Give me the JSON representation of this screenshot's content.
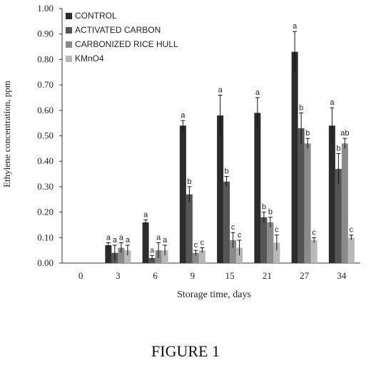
{
  "chart_data": {
    "type": "bar",
    "xlabel": "Storage time, days",
    "ylabel": "Ethylene concentration, ppm",
    "ylim": [
      0,
      1.0
    ],
    "yticks": [
      "0.00",
      "0.10",
      "0.20",
      "0.30",
      "0.40",
      "0.50",
      "0.60",
      "0.70",
      "0.80",
      "0.90",
      "1.00"
    ],
    "categories": [
      "0",
      "3",
      "6",
      "9",
      "15",
      "21",
      "27",
      "34"
    ],
    "legend_position": "top-left",
    "grid": false,
    "error_bars": true,
    "series": [
      {
        "name": "CONTROL",
        "color": "#2b2b2b",
        "values": [
          0,
          0.07,
          0.16,
          0.54,
          0.58,
          0.59,
          0.83,
          0.54
        ],
        "errors": [
          0,
          0.01,
          0.01,
          0.02,
          0.08,
          0.06,
          0.08,
          0.07
        ],
        "labels": [
          "",
          "a",
          "a",
          "a",
          "a",
          "a",
          "a",
          "a"
        ]
      },
      {
        "name": "ACTIVATED CARBON",
        "color": "#555555",
        "values": [
          0,
          0.04,
          0.02,
          0.27,
          0.32,
          0.18,
          0.53,
          0.37
        ],
        "errors": [
          0,
          0.03,
          0.01,
          0.03,
          0.02,
          0.02,
          0.06,
          0.06
        ],
        "labels": [
          "",
          "a",
          "a",
          "b",
          "b",
          "b",
          "b",
          "b"
        ]
      },
      {
        "name": "CARBONIZED RICE HULL",
        "color": "#8a8a8a",
        "values": [
          0,
          0.06,
          0.05,
          0.04,
          0.09,
          0.16,
          0.47,
          0.47
        ],
        "errors": [
          0,
          0.02,
          0.03,
          0.01,
          0.03,
          0.02,
          0.02,
          0.02
        ],
        "labels": [
          "",
          "a",
          "a",
          "c",
          "c",
          "b",
          "b",
          "ab"
        ]
      },
      {
        "name": "KMnO4",
        "color": "#b8b8b8",
        "values": [
          0,
          0.05,
          0.05,
          0.05,
          0.06,
          0.08,
          0.09,
          0.1
        ],
        "errors": [
          0,
          0.02,
          0.02,
          0.01,
          0.03,
          0.03,
          0.01,
          0.01
        ],
        "labels": [
          "",
          "a",
          "a",
          "c",
          "c",
          "c",
          "c",
          "c"
        ]
      }
    ]
  },
  "figure": {
    "caption": "FIGURE 1"
  }
}
